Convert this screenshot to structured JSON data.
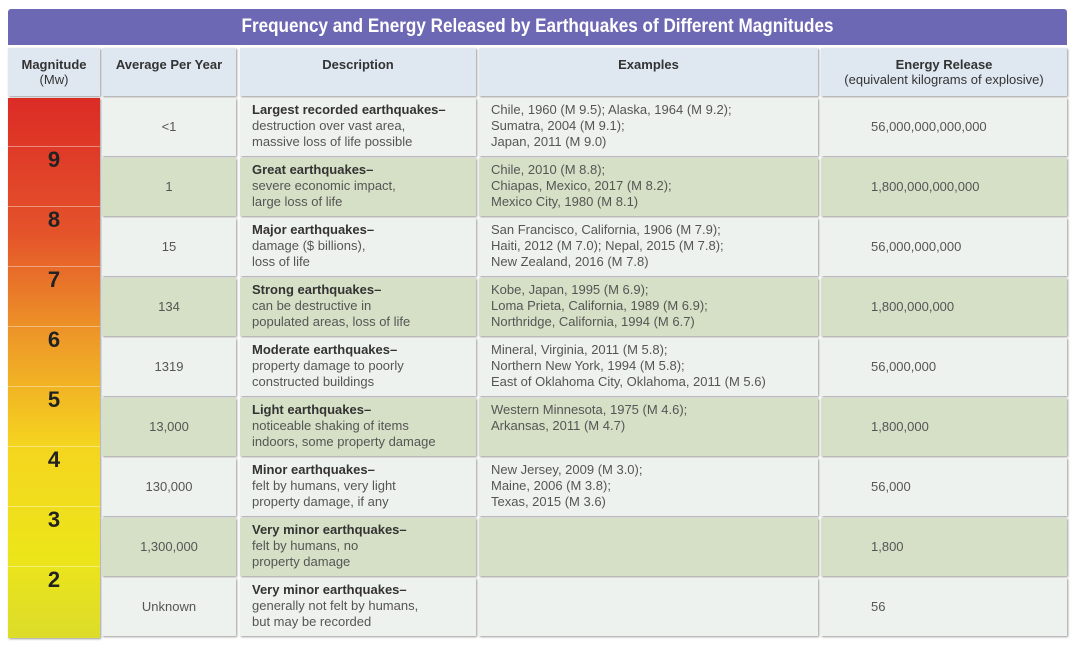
{
  "title": "Frequency and Energy Released by Earthquakes of Different Magnitudes",
  "headers": {
    "magnitude": "Magnitude",
    "magnitude_unit": "(Mw)",
    "avg": "Average Per Year",
    "desc": "Description",
    "examples": "Examples",
    "energy": "Energy Release",
    "energy_unit": "(equivalent kilograms of explosive)"
  },
  "magnitude_scale": [
    "9",
    "8",
    "7",
    "6",
    "5",
    "4",
    "3",
    "2"
  ],
  "rows": [
    {
      "avg": "<1",
      "title": "Largest recorded earthquakes–",
      "desc": [
        "destruction over vast area,",
        "massive loss of life possible"
      ],
      "examples": [
        "Chile, 1960 (M 9.5); Alaska, 1964 (M 9.2);",
        "Sumatra, 2004 (M 9.1);",
        "Japan, 2011 (M 9.0)"
      ],
      "energy": "56,000,000,000,000"
    },
    {
      "avg": "1",
      "title": "Great earthquakes–",
      "desc": [
        "severe economic impact,",
        "large loss of life"
      ],
      "examples": [
        "Chile, 2010 (M 8.8);",
        "Chiapas, Mexico, 2017 (M 8.2);",
        "Mexico City, 1980 (M 8.1)"
      ],
      "energy": "1,800,000,000,000"
    },
    {
      "avg": "15",
      "title": "Major earthquakes–",
      "desc": [
        "damage ($ billions),",
        "loss of life"
      ],
      "examples": [
        "San Francisco, California, 1906 (M 7.9);",
        "Haiti, 2012 (M 7.0); Nepal, 2015 (M 7.8);",
        "New Zealand, 2016 (M 7.8)"
      ],
      "energy": "56,000,000,000"
    },
    {
      "avg": "134",
      "title": "Strong earthquakes–",
      "desc": [
        "can be destructive in",
        "populated areas, loss of life"
      ],
      "examples": [
        "Kobe, Japan, 1995 (M 6.9);",
        "Loma Prieta, California, 1989 (M 6.9);",
        "Northridge, California, 1994 (M 6.7)"
      ],
      "energy": "1,800,000,000"
    },
    {
      "avg": "1319",
      "title": "Moderate earthquakes–",
      "desc": [
        "property damage to poorly",
        "constructed buildings"
      ],
      "examples": [
        "Mineral, Virginia, 2011 (M 5.8);",
        "Northern New York, 1994 (M 5.8);",
        "East of Oklahoma City, Oklahoma, 2011 (M 5.6)"
      ],
      "energy": "56,000,000"
    },
    {
      "avg": "13,000",
      "title": "Light earthquakes–",
      "desc": [
        "noticeable shaking of items",
        "indoors, some property damage"
      ],
      "examples": [
        "Western Minnesota, 1975 (M 4.6);",
        "Arkansas, 2011 (M 4.7)",
        ""
      ],
      "energy": "1,800,000"
    },
    {
      "avg": "130,000",
      "title": "Minor earthquakes–",
      "desc": [
        "felt by humans, very light",
        "property damage, if any"
      ],
      "examples": [
        "New Jersey, 2009 (M 3.0);",
        "Maine, 2006 (M 3.8);",
        "Texas, 2015 (M 3.6)"
      ],
      "energy": "56,000"
    },
    {
      "avg": "1,300,000",
      "title": "Very minor earthquakes–",
      "desc": [
        "felt by humans, no",
        "property damage"
      ],
      "examples": [
        "",
        "",
        ""
      ],
      "energy": "1,800"
    },
    {
      "avg": "Unknown",
      "title": "Very minor earthquakes–",
      "desc": [
        "generally not felt by humans,",
        "but may be recorded"
      ],
      "examples": [
        "",
        "",
        ""
      ],
      "energy": "56"
    }
  ]
}
